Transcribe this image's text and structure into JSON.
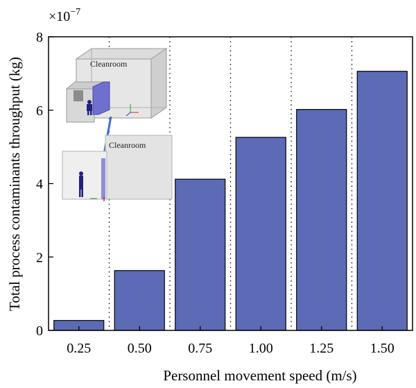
{
  "chart_data": {
    "type": "bar",
    "categories": [
      "0.25",
      "0.50",
      "0.75",
      "1.00",
      "1.25",
      "1.50"
    ],
    "values": [
      0.27,
      1.63,
      4.12,
      5.26,
      6.02,
      7.06
    ],
    "xlabel": "Personnel movement speed (m/s)",
    "ylabel": "Total process contaminants throughput (kg)",
    "ylim": [
      0,
      8
    ],
    "yticks": [
      0,
      2,
      4,
      6,
      8
    ],
    "scale_base": "×10",
    "scale_exponent": "−7",
    "bar_color": "#5b6bb5",
    "grid": "vertical dotted separators between categories",
    "inset": {
      "label_top": "Cleanroom",
      "label_bottom": "Cleanroom"
    }
  }
}
